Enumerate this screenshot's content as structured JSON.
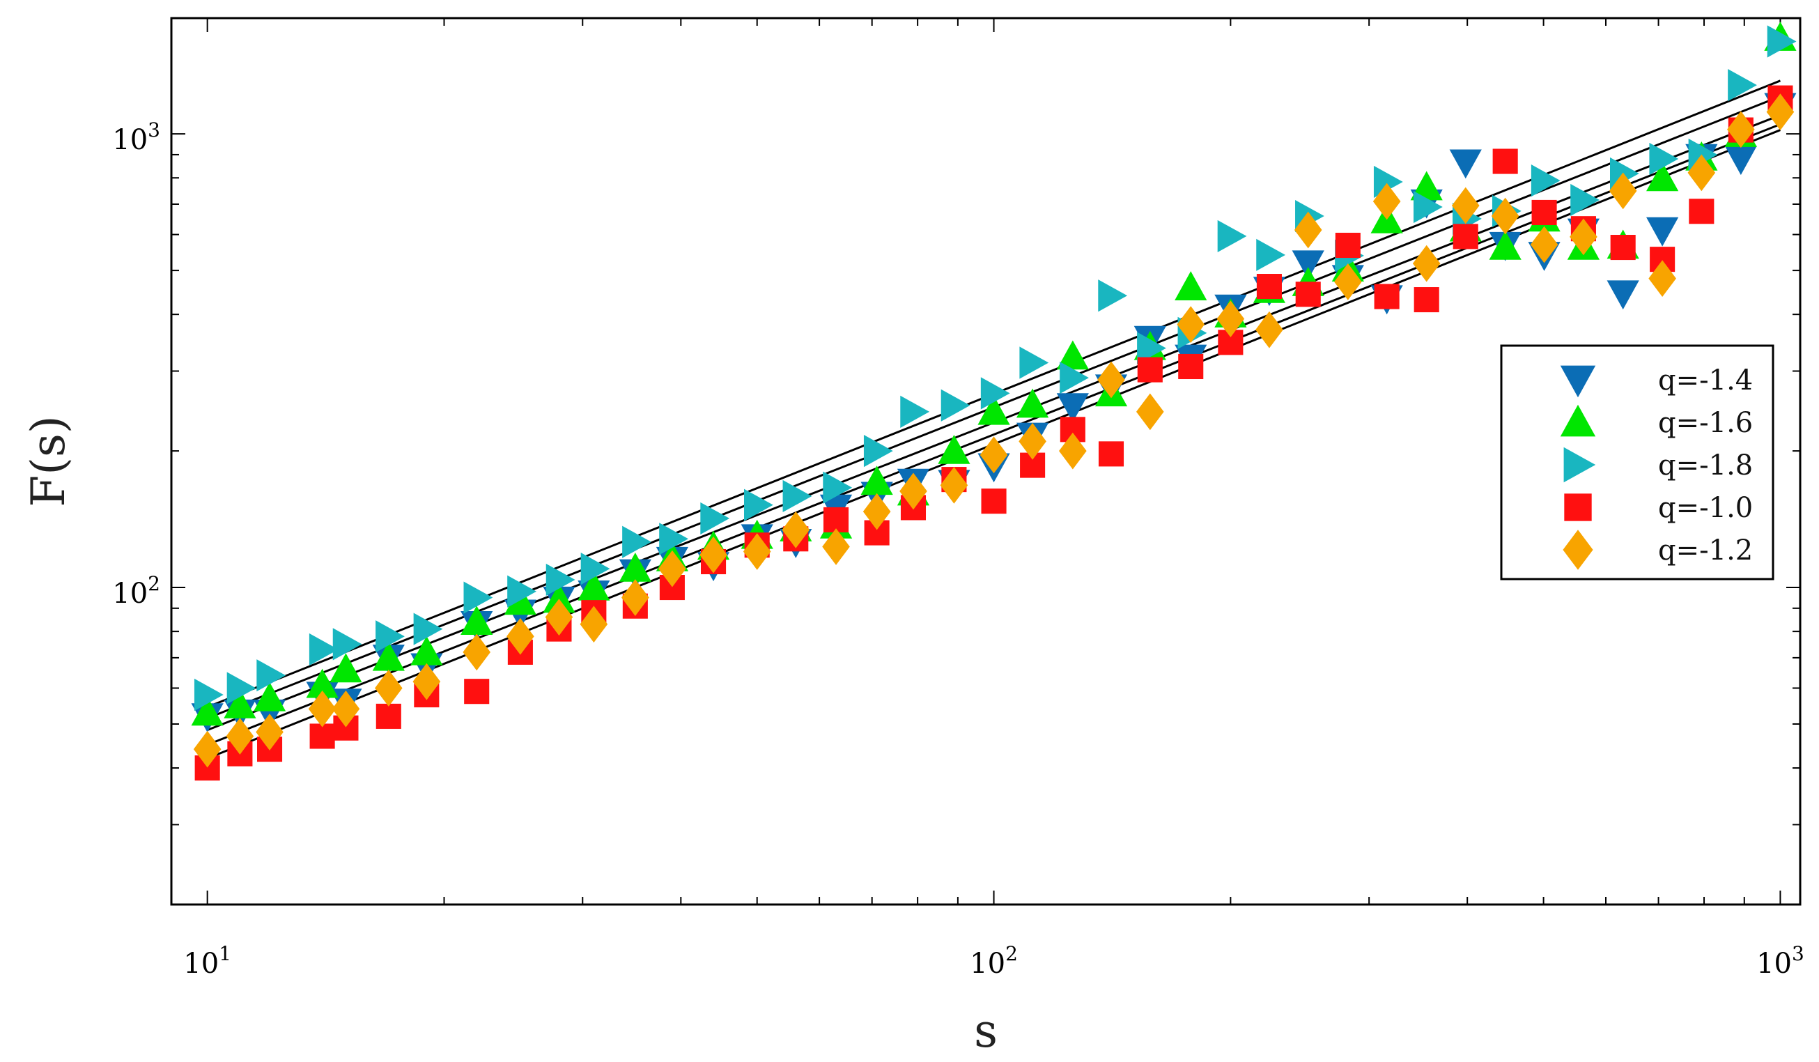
{
  "chart_data": {
    "type": "scatter",
    "title": "",
    "xlabel": "s",
    "ylabel": "F(s)",
    "xscale": "log",
    "yscale": "log",
    "xlim": [
      9.0,
      1060
    ],
    "ylim": [
      20,
      1800
    ],
    "x_ticks": [
      {
        "base": "10",
        "exp": "1",
        "value": 10
      },
      {
        "base": "10",
        "exp": "2",
        "value": 100
      },
      {
        "base": "10",
        "exp": "3",
        "value": 1000
      }
    ],
    "y_ticks": [
      {
        "base": "10",
        "exp": "2",
        "value": 100
      },
      {
        "base": "10",
        "exp": "3",
        "value": 1000
      }
    ],
    "legend_position": "right",
    "grid": false,
    "series": [
      {
        "name": "q=-1.4",
        "marker": "triangle-down",
        "color": "#0b6db5",
        "points": [
          [
            10,
            52
          ],
          [
            11,
            53
          ],
          [
            12,
            53
          ],
          [
            14,
            58
          ],
          [
            15,
            56
          ],
          [
            17,
            70
          ],
          [
            19,
            67
          ],
          [
            22,
            83
          ],
          [
            25,
            88
          ],
          [
            28,
            94
          ],
          [
            31,
            97
          ],
          [
            35,
            108
          ],
          [
            39,
            115
          ],
          [
            44,
            112
          ],
          [
            50,
            129
          ],
          [
            56,
            126
          ],
          [
            63,
            150
          ],
          [
            71,
            160
          ],
          [
            79,
            171
          ],
          [
            89,
            170
          ],
          [
            100,
            185
          ],
          [
            112,
            216
          ],
          [
            126,
            251
          ],
          [
            141,
            276
          ],
          [
            158,
            353
          ],
          [
            178,
            321
          ],
          [
            200,
            414
          ],
          [
            224,
            453
          ],
          [
            251,
            518
          ],
          [
            282,
            481
          ],
          [
            316,
            434
          ],
          [
            355,
            706
          ],
          [
            398,
            865
          ],
          [
            447,
            569
          ],
          [
            501,
            541
          ],
          [
            562,
            609
          ],
          [
            631,
            445
          ],
          [
            708,
            613
          ],
          [
            794,
            889
          ],
          [
            891,
            881
          ],
          [
            1000,
            1152
          ]
        ],
        "fit": [
          [
            10,
            51.5
          ],
          [
            1000,
            1210
          ]
        ]
      },
      {
        "name": "q=-1.6",
        "marker": "triangle-up",
        "color": "#00e600",
        "points": [
          [
            10,
            53
          ],
          [
            11,
            55
          ],
          [
            12,
            57
          ],
          [
            14,
            61
          ],
          [
            15,
            66
          ],
          [
            17,
            70
          ],
          [
            19,
            72
          ],
          [
            22,
            84
          ],
          [
            25,
            93
          ],
          [
            28,
            94
          ],
          [
            31,
            100
          ],
          [
            35,
            110
          ],
          [
            39,
            116
          ],
          [
            44,
            123
          ],
          [
            50,
            130
          ],
          [
            56,
            135
          ],
          [
            63,
            137
          ],
          [
            71,
            171
          ],
          [
            79,
            162
          ],
          [
            89,
            200
          ],
          [
            100,
            244
          ],
          [
            112,
            253
          ],
          [
            126,
            323
          ],
          [
            141,
            268
          ],
          [
            158,
            339
          ],
          [
            178,
            459
          ],
          [
            200,
            400
          ],
          [
            224,
            453
          ],
          [
            251,
            469
          ],
          [
            282,
            505
          ],
          [
            316,
            645
          ],
          [
            355,
            763
          ],
          [
            398,
            619
          ],
          [
            447,
            564
          ],
          [
            501,
            651
          ],
          [
            562,
            564
          ],
          [
            631,
            567
          ],
          [
            708,
            799
          ],
          [
            794,
            887
          ],
          [
            891,
            1000
          ],
          [
            1000,
            1629
          ]
        ],
        "fit": [
          [
            10,
            48.5
          ],
          [
            1000,
            1100
          ]
        ]
      },
      {
        "name": "q=-1.8",
        "marker": "triangle-right",
        "color": "#19b6c0",
        "points": [
          [
            10,
            58
          ],
          [
            11,
            60
          ],
          [
            12,
            64
          ],
          [
            14,
            73
          ],
          [
            15,
            75
          ],
          [
            17,
            78
          ],
          [
            19,
            81
          ],
          [
            22,
            95
          ],
          [
            25,
            98
          ],
          [
            28,
            104
          ],
          [
            31,
            110
          ],
          [
            35,
            126
          ],
          [
            39,
            128
          ],
          [
            44,
            142
          ],
          [
            50,
            152
          ],
          [
            56,
            159
          ],
          [
            63,
            166
          ],
          [
            71,
            200
          ],
          [
            79,
            244
          ],
          [
            89,
            252
          ],
          [
            100,
            268
          ],
          [
            112,
            313
          ],
          [
            126,
            290
          ],
          [
            141,
            440
          ],
          [
            158,
            337
          ],
          [
            178,
            364
          ],
          [
            200,
            595
          ],
          [
            224,
            541
          ],
          [
            251,
            659
          ],
          [
            282,
            539
          ],
          [
            316,
            784
          ],
          [
            355,
            690
          ],
          [
            398,
            650
          ],
          [
            447,
            676
          ],
          [
            501,
            789
          ],
          [
            562,
            715
          ],
          [
            631,
            818
          ],
          [
            708,
            881
          ],
          [
            794,
            900
          ],
          [
            891,
            1281
          ],
          [
            1000,
            1599
          ]
        ],
        "fit": [
          [
            10,
            54.5
          ],
          [
            1000,
            1310
          ]
        ]
      },
      {
        "name": "q=-1.0",
        "marker": "square",
        "color": "#ff1010",
        "points": [
          [
            10,
            40
          ],
          [
            11,
            43
          ],
          [
            12,
            44
          ],
          [
            14,
            47
          ],
          [
            15,
            49
          ],
          [
            17,
            52
          ],
          [
            19,
            58
          ],
          [
            22,
            59
          ],
          [
            25,
            72
          ],
          [
            28,
            81
          ],
          [
            31,
            88
          ],
          [
            35,
            91
          ],
          [
            39,
            100
          ],
          [
            44,
            114
          ],
          [
            50,
            124
          ],
          [
            56,
            128
          ],
          [
            63,
            141
          ],
          [
            71,
            132
          ],
          [
            79,
            150
          ],
          [
            89,
            173
          ],
          [
            100,
            155
          ],
          [
            112,
            186
          ],
          [
            126,
            223
          ],
          [
            141,
            197
          ],
          [
            158,
            302
          ],
          [
            178,
            307
          ],
          [
            200,
            347
          ],
          [
            224,
            461
          ],
          [
            251,
            443
          ],
          [
            282,
            568
          ],
          [
            316,
            438
          ],
          [
            355,
            431
          ],
          [
            398,
            594
          ],
          [
            447,
            870
          ],
          [
            501,
            671
          ],
          [
            562,
            618
          ],
          [
            631,
            562
          ],
          [
            708,
            529
          ],
          [
            794,
            675
          ],
          [
            891,
            1020
          ],
          [
            1000,
            1200
          ]
        ],
        "fit": [
          [
            10,
            42
          ],
          [
            1000,
            1020
          ]
        ]
      },
      {
        "name": "q=-1.2",
        "marker": "diamond",
        "color": "#f8a400",
        "points": [
          [
            10,
            44
          ],
          [
            11,
            47
          ],
          [
            12,
            48
          ],
          [
            14,
            54
          ],
          [
            15,
            54
          ],
          [
            17,
            60
          ],
          [
            19,
            62
          ],
          [
            22,
            72
          ],
          [
            25,
            78
          ],
          [
            28,
            86
          ],
          [
            31,
            83
          ],
          [
            35,
            95
          ],
          [
            39,
            110
          ],
          [
            44,
            118
          ],
          [
            50,
            120
          ],
          [
            56,
            134
          ],
          [
            63,
            123
          ],
          [
            71,
            147
          ],
          [
            79,
            163
          ],
          [
            89,
            168
          ],
          [
            100,
            196
          ],
          [
            112,
            210
          ],
          [
            126,
            200
          ],
          [
            141,
            287
          ],
          [
            158,
            244
          ],
          [
            178,
            380
          ],
          [
            200,
            391
          ],
          [
            224,
            370
          ],
          [
            251,
            614
          ],
          [
            282,
            472
          ],
          [
            316,
            710
          ],
          [
            355,
            518
          ],
          [
            398,
            695
          ],
          [
            447,
            659
          ],
          [
            501,
            570
          ],
          [
            562,
            593
          ],
          [
            631,
            749
          ],
          [
            708,
            480
          ],
          [
            794,
            821
          ],
          [
            891,
            1023
          ],
          [
            1000,
            1118
          ]
        ],
        "fit": [
          [
            10,
            45
          ],
          [
            1000,
            1050
          ]
        ]
      }
    ]
  }
}
